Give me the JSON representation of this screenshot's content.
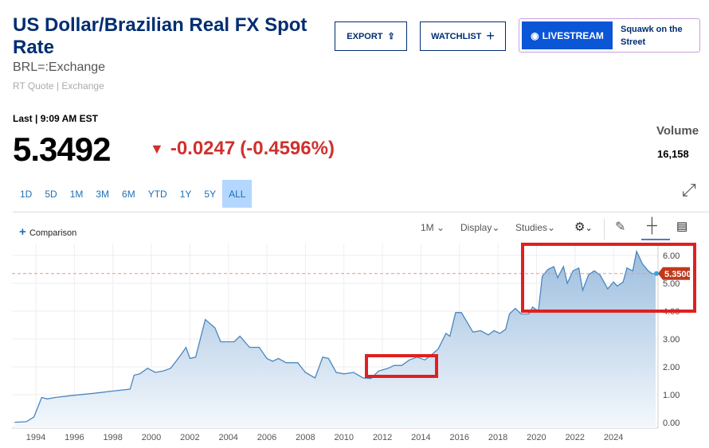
{
  "header": {
    "title": "US Dollar/Brazilian Real FX Spot Rate",
    "symbol": "BRL=:Exchange",
    "quote_type": "RT Quote | Exchange",
    "export_label": "EXPORT",
    "watchlist_label": "WATCHLIST",
    "livestream_label": "LIVESTREAM",
    "squawk_label": "Squawk on the Street"
  },
  "quote": {
    "last_label": "Last | 9:09 AM EST",
    "price": "5.3492",
    "change": "-0.0247",
    "change_pct": "(-0.4596%)",
    "volume_label": "Volume",
    "volume": "16,158",
    "down_color": "#d0312d"
  },
  "ranges": [
    "1D",
    "5D",
    "1M",
    "3M",
    "6M",
    "YTD",
    "1Y",
    "5Y",
    "ALL"
  ],
  "active_range": "ALL",
  "toolbar": {
    "comparison": "Comparison",
    "interval": "1M",
    "display": "Display",
    "studies": "Studies"
  },
  "chart_data": {
    "type": "area",
    "current_label": "5.3500",
    "current_value": 5.35,
    "ylim": [
      0,
      6.3
    ],
    "yticks": [
      "0.00",
      "1.00",
      "2.00",
      "3.00",
      "4.00",
      "5.00",
      "6.00"
    ],
    "xticks": [
      "1994",
      "1996",
      "1998",
      "2000",
      "2002",
      "2004",
      "2006",
      "2008",
      "2010",
      "2012",
      "2014",
      "2016",
      "2018",
      "2020",
      "2022",
      "2024"
    ],
    "points": [
      [
        1992.9,
        0.01
      ],
      [
        1993.5,
        0.03
      ],
      [
        1993.9,
        0.2
      ],
      [
        1994.3,
        0.9
      ],
      [
        1994.6,
        0.85
      ],
      [
        1995,
        0.9
      ],
      [
        1996,
        0.98
      ],
      [
        1997,
        1.05
      ],
      [
        1998,
        1.13
      ],
      [
        1998.9,
        1.2
      ],
      [
        1999.1,
        1.7
      ],
      [
        1999.4,
        1.75
      ],
      [
        1999.8,
        1.95
      ],
      [
        2000.2,
        1.8
      ],
      [
        2000.6,
        1.85
      ],
      [
        2001,
        1.95
      ],
      [
        2001.5,
        2.4
      ],
      [
        2001.8,
        2.7
      ],
      [
        2002,
        2.3
      ],
      [
        2002.3,
        2.35
      ],
      [
        2002.8,
        3.7
      ],
      [
        2003.3,
        3.4
      ],
      [
        2003.6,
        2.9
      ],
      [
        2004,
        2.9
      ],
      [
        2004.3,
        2.9
      ],
      [
        2004.6,
        3.1
      ],
      [
        2005.1,
        2.7
      ],
      [
        2005.6,
        2.7
      ],
      [
        2006,
        2.3
      ],
      [
        2006.3,
        2.2
      ],
      [
        2006.6,
        2.3
      ],
      [
        2007,
        2.15
      ],
      [
        2007.6,
        2.15
      ],
      [
        2008,
        1.8
      ],
      [
        2008.5,
        1.6
      ],
      [
        2008.9,
        2.35
      ],
      [
        2009.2,
        2.3
      ],
      [
        2009.6,
        1.8
      ],
      [
        2010,
        1.75
      ],
      [
        2010.5,
        1.8
      ],
      [
        2011,
        1.6
      ],
      [
        2011.4,
        1.58
      ],
      [
        2011.8,
        1.85
      ],
      [
        2012.3,
        1.95
      ],
      [
        2012.6,
        2.05
      ],
      [
        2013,
        2.05
      ],
      [
        2013.4,
        2.25
      ],
      [
        2013.8,
        2.35
      ],
      [
        2014.2,
        2.25
      ],
      [
        2014.5,
        2.4
      ],
      [
        2014.9,
        2.65
      ],
      [
        2015.3,
        3.2
      ],
      [
        2015.5,
        3.1
      ],
      [
        2015.8,
        3.95
      ],
      [
        2016.1,
        3.95
      ],
      [
        2016.7,
        3.25
      ],
      [
        2017.1,
        3.3
      ],
      [
        2017.5,
        3.15
      ],
      [
        2017.8,
        3.3
      ],
      [
        2018.1,
        3.2
      ],
      [
        2018.4,
        3.35
      ],
      [
        2018.6,
        3.9
      ],
      [
        2018.9,
        4.1
      ],
      [
        2019.2,
        3.9
      ],
      [
        2019.6,
        3.9
      ],
      [
        2019.8,
        4.15
      ],
      [
        2020.1,
        4.0
      ],
      [
        2020.3,
        5.25
      ],
      [
        2020.6,
        5.5
      ],
      [
        2020.9,
        5.6
      ],
      [
        2021.1,
        5.2
      ],
      [
        2021.4,
        5.6
      ],
      [
        2021.6,
        5.0
      ],
      [
        2021.9,
        5.45
      ],
      [
        2022.2,
        5.55
      ],
      [
        2022.4,
        4.75
      ],
      [
        2022.7,
        5.3
      ],
      [
        2023,
        5.45
      ],
      [
        2023.3,
        5.3
      ],
      [
        2023.7,
        4.8
      ],
      [
        2024,
        5.05
      ],
      [
        2024.2,
        4.9
      ],
      [
        2024.5,
        5.05
      ],
      [
        2024.7,
        5.55
      ],
      [
        2025,
        5.45
      ],
      [
        2025.2,
        6.15
      ],
      [
        2025.5,
        5.7
      ],
      [
        2025.8,
        5.45
      ],
      [
        2026,
        5.35
      ],
      [
        2026.2,
        5.35
      ]
    ]
  }
}
